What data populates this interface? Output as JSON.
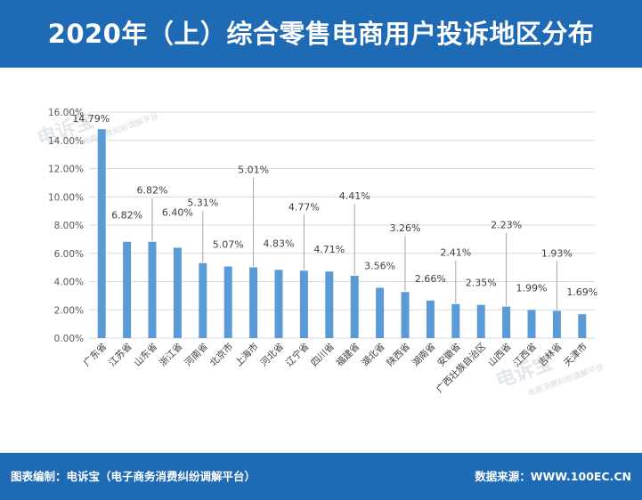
{
  "header": {
    "title": "2020年（上）综合零售电商用户投诉地区分布"
  },
  "footer": {
    "left": "图表编制：电诉宝（电子商务消费纠纷调解平台）",
    "right": "数据来源：WWW.100EC.CN"
  },
  "watermark": {
    "logo_text": "电诉宝",
    "sub_text": "电商消费纠纷调解平台"
  },
  "colors": {
    "header_bg": "#1f6ab5",
    "bar": "#5b9bd5",
    "grid": "#d9d9d9"
  },
  "chart_data": {
    "type": "bar",
    "title": "",
    "xlabel": "",
    "ylabel": "",
    "categories": [
      "广东省",
      "江苏省",
      "山东省",
      "浙江省",
      "河南省",
      "北京市",
      "上海市",
      "河北省",
      "辽宁省",
      "四川省",
      "福建省",
      "湖北省",
      "陕西省",
      "湖南省",
      "安徽省",
      "广西壮族自治区",
      "山西省",
      "江西省",
      "吉林省",
      "天津市"
    ],
    "values": [
      14.79,
      6.82,
      6.82,
      6.4,
      5.31,
      5.07,
      5.01,
      4.83,
      4.77,
      4.71,
      4.41,
      3.56,
      3.26,
      2.66,
      2.41,
      2.35,
      2.23,
      1.99,
      1.93,
      1.69
    ],
    "value_labels": [
      "14.79%",
      "6.82%",
      "6.82%",
      "6.40%",
      "5.31%",
      "5.07%",
      "5.01%",
      "4.83%",
      "4.77%",
      "4.71%",
      "4.41%",
      "3.56%",
      "3.26%",
      "2.66%",
      "2.41%",
      "2.35%",
      "2.23%",
      "1.99%",
      "1.93%",
      "1.69%"
    ],
    "ylim": [
      0,
      16
    ],
    "yticks": [
      "0.00%",
      "2.00%",
      "4.00%",
      "6.00%",
      "8.00%",
      "10.00%",
      "12.00%",
      "14.00%",
      "16.00%"
    ],
    "grid": true
  }
}
